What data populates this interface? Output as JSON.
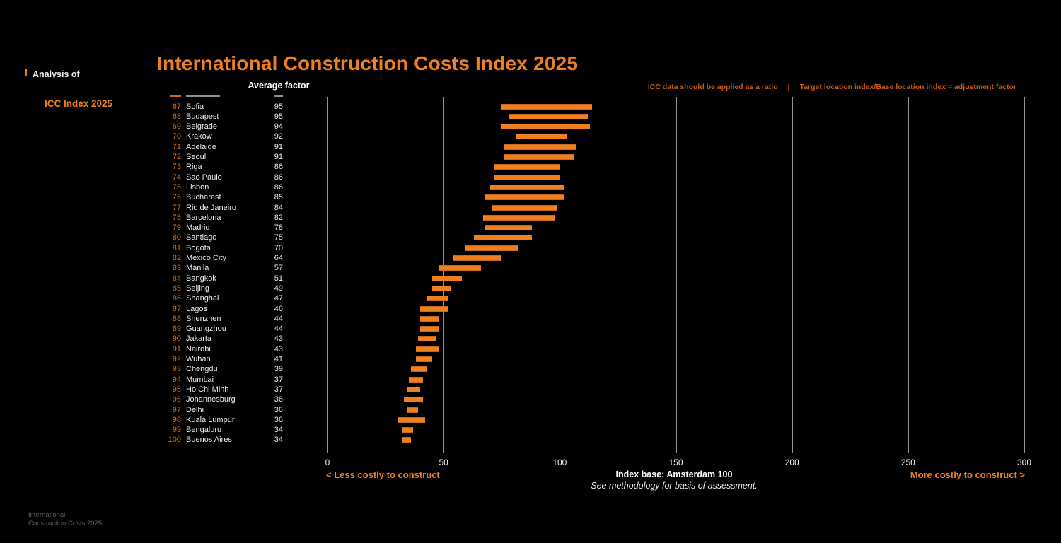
{
  "header": {
    "title": "International Construction Costs Index 2025",
    "note_ratio": "ICC data should be applied as a ratio",
    "note_separator": "|",
    "note_formula": "Target location index/Base location index = adjustment factor"
  },
  "sidebar": {
    "section_label": "Analysis of",
    "active_item": "ICC Index 2025"
  },
  "annotations": {
    "less_costly": "< Less costly to construct",
    "more_costly": "More costly to construct >",
    "index_base": "Index base: Amsterdam 100",
    "methodology": "See methodology for basis of assessment."
  },
  "footer": {
    "brand": "International\nConstruction Costs 2025"
  },
  "colors": {
    "accent_orange": "#F0801F",
    "rank_orange": "#D96F1A",
    "note_orange": "#C75C12",
    "gridline_gray": "#8F8F8F",
    "text_white": "#ECECEC",
    "footer_gray": "#606060",
    "background": "#000000"
  },
  "chart_data": {
    "type": "bar",
    "orientation": "horizontal-range",
    "title": "International Construction Costs Index 2025",
    "value_column_header": "Average factor",
    "xlim": [
      0,
      300
    ],
    "x_ticks": [
      0,
      50,
      100,
      150,
      200,
      250,
      300
    ],
    "grid": "vertical-lines",
    "index_base": "Index base: Amsterdam 100",
    "rows": [
      {
        "rank": 67,
        "city": "Sofia",
        "average_factor": 95,
        "bar_range": [
          75,
          114
        ]
      },
      {
        "rank": 68,
        "city": "Budapest",
        "average_factor": 95,
        "bar_range": [
          78,
          112
        ]
      },
      {
        "rank": 69,
        "city": "Belgrade",
        "average_factor": 94,
        "bar_range": [
          75,
          113
        ]
      },
      {
        "rank": 70,
        "city": "Krakow",
        "average_factor": 92,
        "bar_range": [
          81,
          103
        ]
      },
      {
        "rank": 71,
        "city": "Adelaide",
        "average_factor": 91,
        "bar_range": [
          76,
          107
        ]
      },
      {
        "rank": 72,
        "city": "Seoul",
        "average_factor": 91,
        "bar_range": [
          76,
          106
        ]
      },
      {
        "rank": 73,
        "city": "Riga",
        "average_factor": 86,
        "bar_range": [
          72,
          100
        ]
      },
      {
        "rank": 74,
        "city": "Sao Paulo",
        "average_factor": 86,
        "bar_range": [
          72,
          100
        ]
      },
      {
        "rank": 75,
        "city": "Lisbon",
        "average_factor": 86,
        "bar_range": [
          70,
          102
        ]
      },
      {
        "rank": 76,
        "city": "Bucharest",
        "average_factor": 85,
        "bar_range": [
          68,
          102
        ]
      },
      {
        "rank": 77,
        "city": "Rio de Janeiro",
        "average_factor": 84,
        "bar_range": [
          71,
          99
        ]
      },
      {
        "rank": 78,
        "city": "Barcelona",
        "average_factor": 82,
        "bar_range": [
          67,
          98
        ]
      },
      {
        "rank": 79,
        "city": "Madrid",
        "average_factor": 78,
        "bar_range": [
          68,
          88
        ]
      },
      {
        "rank": 80,
        "city": "Santiago",
        "average_factor": 75,
        "bar_range": [
          63,
          88
        ]
      },
      {
        "rank": 81,
        "city": "Bogota",
        "average_factor": 70,
        "bar_range": [
          59,
          82
        ]
      },
      {
        "rank": 82,
        "city": "Mexico City",
        "average_factor": 64,
        "bar_range": [
          54,
          75
        ]
      },
      {
        "rank": 83,
        "city": "Manila",
        "average_factor": 57,
        "bar_range": [
          48,
          66
        ]
      },
      {
        "rank": 84,
        "city": "Bangkok",
        "average_factor": 51,
        "bar_range": [
          45,
          58
        ]
      },
      {
        "rank": 85,
        "city": "Beijing",
        "average_factor": 49,
        "bar_range": [
          45,
          53
        ]
      },
      {
        "rank": 86,
        "city": "Shanghai",
        "average_factor": 47,
        "bar_range": [
          43,
          52
        ]
      },
      {
        "rank": 87,
        "city": "Lagos",
        "average_factor": 46,
        "bar_range": [
          40,
          52
        ]
      },
      {
        "rank": 88,
        "city": "Shenzhen",
        "average_factor": 44,
        "bar_range": [
          40,
          48
        ]
      },
      {
        "rank": 89,
        "city": "Guangzhou",
        "average_factor": 44,
        "bar_range": [
          40,
          48
        ]
      },
      {
        "rank": 90,
        "city": "Jakarta",
        "average_factor": 43,
        "bar_range": [
          39,
          47
        ]
      },
      {
        "rank": 91,
        "city": "Nairobi",
        "average_factor": 43,
        "bar_range": [
          38,
          48
        ]
      },
      {
        "rank": 92,
        "city": "Wuhan",
        "average_factor": 41,
        "bar_range": [
          38,
          45
        ]
      },
      {
        "rank": 93,
        "city": "Chengdu",
        "average_factor": 39,
        "bar_range": [
          36,
          43
        ]
      },
      {
        "rank": 94,
        "city": "Mumbai",
        "average_factor": 37,
        "bar_range": [
          35,
          41
        ]
      },
      {
        "rank": 95,
        "city": "Ho Chi Minh",
        "average_factor": 37,
        "bar_range": [
          34,
          40
        ]
      },
      {
        "rank": 96,
        "city": "Johannesburg",
        "average_factor": 36,
        "bar_range": [
          33,
          41
        ]
      },
      {
        "rank": 97,
        "city": "Delhi",
        "average_factor": 36,
        "bar_range": [
          34,
          39
        ]
      },
      {
        "rank": 98,
        "city": "Kuala Lumpur",
        "average_factor": 36,
        "bar_range": [
          30,
          42
        ]
      },
      {
        "rank": 99,
        "city": "Bengaluru",
        "average_factor": 34,
        "bar_range": [
          32,
          37
        ]
      },
      {
        "rank": 100,
        "city": "Buenos Aires",
        "average_factor": 34,
        "bar_range": [
          32,
          36
        ]
      }
    ]
  }
}
